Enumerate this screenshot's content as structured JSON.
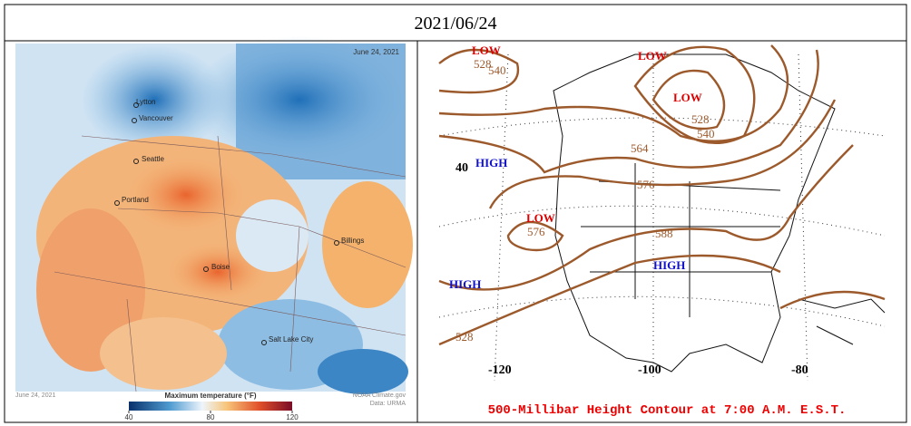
{
  "header": {
    "date": "2021/06/24"
  },
  "left_map": {
    "date_label": "June 24, 2021",
    "cities": [
      "Lytton",
      "Vancouver",
      "Seattle",
      "Portland",
      "Boise",
      "Billings",
      "Salt Lake City"
    ],
    "footer_date": "June 24, 2021",
    "credit": [
      "NOAA Climate.gov",
      "Data: URMA"
    ],
    "colorbar": {
      "title": "Maximum temperature (°F)",
      "range": [
        40,
        120
      ],
      "ticks": [
        40,
        80,
        120
      ]
    }
  },
  "right_map": {
    "pressure_labels": [
      "LOW",
      "LOW",
      "LOW",
      "LOW",
      "HIGH",
      "HIGH",
      "HIGH"
    ],
    "contour_labels": [
      "528",
      "540",
      "528",
      "540",
      "564",
      "576",
      "588",
      "576",
      "528"
    ],
    "latitude_labels": [
      "40"
    ],
    "longitude_labels": [
      "-120",
      "-100",
      "-80"
    ],
    "caption": "500-Millibar Height Contour at 7:00 A.M. E.S.T."
  }
}
